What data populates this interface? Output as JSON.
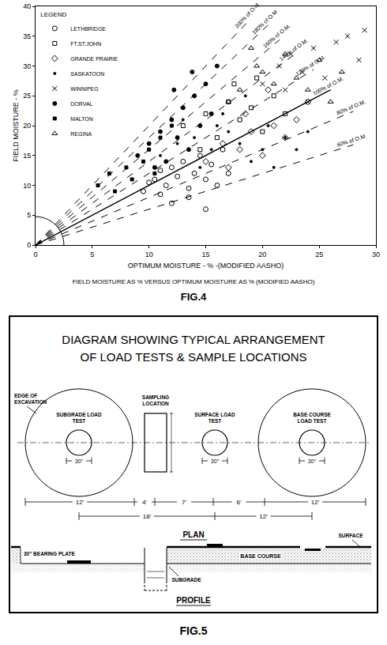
{
  "chart_data": {
    "type": "scatter",
    "title": "FIG.4",
    "subtitle": "FIELD MOISTURE AS % VERSUS OPTIMUM MOISTURE AS % (MODIFIED AASHO)",
    "xlabel": "OPTIMUM MOISTURE - % -(MODIFIED AASHO)",
    "ylabel": "FIELD MOISTURE - %",
    "legend_title": "LEGEND",
    "legend": "upper left",
    "grid": false,
    "xlim": [
      0,
      30
    ],
    "ylim": [
      0,
      40
    ],
    "xticks": [
      0,
      5,
      10,
      15,
      20,
      25,
      30
    ],
    "yticks": [
      0,
      5,
      10,
      15,
      20,
      25,
      30,
      35,
      40
    ],
    "series": [
      {
        "name": "LETHBRIDGE",
        "color": "#000000",
        "marker": "circle-open",
        "x": [
          9.5,
          10.5,
          11,
          11.5,
          12,
          12.5,
          13,
          13.5,
          14,
          14.5,
          15,
          15.5,
          16,
          16.5,
          17,
          12,
          13.5,
          11,
          10,
          15
        ],
        "y": [
          9,
          11,
          12.5,
          10,
          13,
          11.5,
          14,
          9.5,
          12,
          15,
          11,
          13.5,
          10,
          16,
          12,
          7,
          8,
          8.5,
          10.5,
          6
        ]
      },
      {
        "name": "FT.ST.JOHN",
        "color": "#000000",
        "marker": "square-open",
        "x": [
          13,
          15,
          16,
          17,
          18,
          19,
          20,
          21,
          14.5,
          17.5,
          19.5,
          22
        ],
        "y": [
          20,
          22,
          18,
          24,
          21,
          23,
          19,
          25,
          16,
          27,
          28,
          22
        ]
      },
      {
        "name": "GRANDE PRAIRIE",
        "color": "#000000",
        "marker": "diamond-open",
        "x": [
          15,
          16.5,
          18,
          19,
          20,
          21,
          22,
          17,
          18.5,
          23,
          24,
          20.5
        ],
        "y": [
          14,
          17,
          16,
          19,
          15,
          20,
          18,
          13,
          22,
          21,
          24,
          26
        ]
      },
      {
        "name": "SASKATOON",
        "color": "#000000",
        "marker": "dot",
        "x": [
          11,
          12.5,
          14,
          15.5,
          16,
          17,
          18,
          19,
          20,
          21,
          22,
          13,
          14.5,
          16.5,
          18.5,
          20.5,
          23,
          24
        ],
        "y": [
          15,
          17,
          18,
          16,
          20,
          19,
          17,
          14,
          16,
          13,
          18,
          21,
          13,
          22,
          25,
          20,
          16,
          19
        ]
      },
      {
        "name": "WINNIPEG",
        "color": "#000000",
        "marker": "x",
        "x": [
          20,
          21.5,
          22.5,
          23.5,
          24.5,
          25.5,
          26.5,
          27.5,
          28.5,
          22,
          24,
          29
        ],
        "y": [
          27,
          30,
          32,
          29,
          33,
          28,
          34,
          35,
          31,
          26,
          24,
          36
        ]
      },
      {
        "name": "DORVAL",
        "color": "#000000",
        "marker": "circle",
        "x": [
          9,
          10,
          11,
          11.5,
          12,
          12.5,
          13,
          13.5,
          14,
          14.5,
          15,
          15.5,
          16,
          10.5,
          12.2,
          13.8
        ],
        "y": [
          15,
          17,
          19,
          14,
          21,
          18,
          23,
          16,
          25,
          20,
          27,
          22,
          30,
          13,
          26,
          29
        ]
      },
      {
        "name": "MALTON",
        "color": "#000000",
        "marker": "square",
        "x": [
          5.5,
          6.5,
          7,
          8,
          8.5,
          9.5,
          10,
          10.5,
          11,
          12
        ],
        "y": [
          10,
          12,
          9,
          13,
          11,
          14,
          16,
          12,
          18,
          20
        ]
      },
      {
        "name": "REGINA",
        "color": "#000000",
        "marker": "triangle",
        "x": [
          17,
          18,
          19.5,
          20,
          21,
          22,
          23,
          24,
          25,
          26,
          27,
          19
        ],
        "y": [
          24,
          26,
          30,
          29,
          27,
          32,
          28,
          26,
          31,
          24,
          29,
          33
        ]
      }
    ],
    "reference_lines": [
      {
        "label": "60% of O.M.",
        "color": "#000000",
        "line_style": "dash",
        "x": [
          0,
          28
        ],
        "y": [
          0,
          16.8
        ]
      },
      {
        "label": "80% of O.M.",
        "color": "#000000",
        "line_style": "dash",
        "x": [
          0,
          28
        ],
        "y": [
          0,
          22.4
        ]
      },
      {
        "label": "100% of O.M.",
        "color": "#000000",
        "line_style": "solid",
        "x": [
          0,
          26
        ],
        "y": [
          0,
          26
        ]
      },
      {
        "label": "120% of O.M.",
        "color": "#000000",
        "line_style": "dash",
        "x": [
          0,
          24.5
        ],
        "y": [
          0,
          29.4
        ]
      },
      {
        "label": "140% of O.M.",
        "color": "#000000",
        "line_style": "dash",
        "x": [
          0,
          23
        ],
        "y": [
          0,
          32.2
        ]
      },
      {
        "label": "160% of O.M.",
        "color": "#000000",
        "line_style": "dash",
        "x": [
          0,
          21.5
        ],
        "y": [
          0,
          34.4
        ]
      },
      {
        "label": "180% of O.M.",
        "color": "#000000",
        "line_style": "dash",
        "x": [
          0,
          20.5
        ],
        "y": [
          0,
          36.9
        ]
      },
      {
        "label": "200% of O.M.",
        "color": "#000000",
        "line_style": "dash",
        "x": [
          0,
          19
        ],
        "y": [
          0,
          38
        ]
      }
    ]
  },
  "diagram": {
    "title": [
      "DIAGRAM SHOWING TYPICAL ARRANGEMENT",
      "OF LOAD TESTS & SAMPLE LOCATIONS"
    ],
    "plan": {
      "heading": "PLAN",
      "edge_label": [
        "EDGE OF",
        "EXCAVATION"
      ],
      "sampling_label": [
        "SAMPLING",
        "LOCATION"
      ],
      "tests": [
        {
          "label": [
            "SUBGRADE LOAD",
            "TEST"
          ],
          "plate": "30\""
        },
        {
          "label": [
            "SURFACE LOAD",
            "TEST"
          ],
          "plate": "30\""
        },
        {
          "label": [
            "BASE COURSE",
            "LOAD TEST"
          ],
          "plate": "30\""
        }
      ],
      "dimensions_top": [
        "12'",
        "4'",
        "7'",
        "6'",
        "12'"
      ],
      "dimensions_bottom": [
        "18'",
        "12'"
      ]
    },
    "profile": {
      "heading": "PROFILE",
      "bearing_plate": "30\" BEARING PLATE",
      "surface": "SURFACE",
      "base_course": "BASE COURSE",
      "subgrade": "SUBGRADE"
    },
    "figure_label": "FIG.5"
  }
}
